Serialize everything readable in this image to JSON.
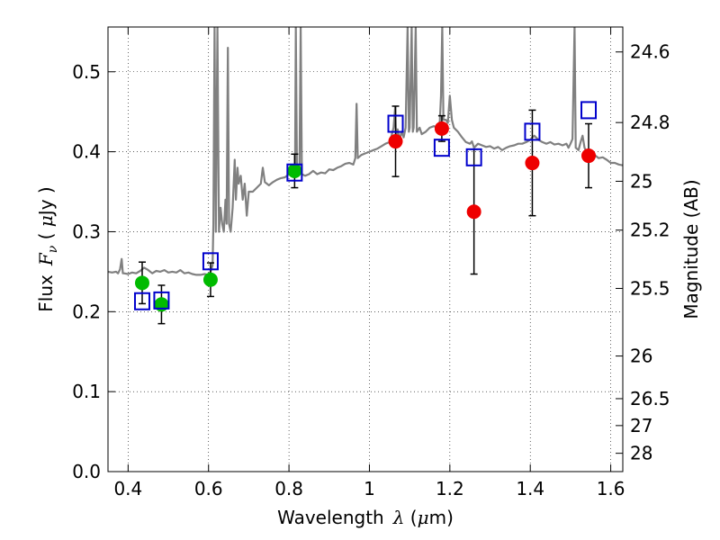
{
  "chart_data": {
    "type": "scatter",
    "xlabel": "Wavelength",
    "xlabel_symbol": "λ",
    "xlabel_unit_open": " (",
    "xlabel_unit_mu": "μ",
    "xlabel_unit_rest": "m)",
    "ylabel": "Flux",
    "ylabel_symbol": "F",
    "ylabel_subscript": "ν",
    "ylabel_unit_open": " ( ",
    "ylabel_unit_mu": "μ",
    "ylabel_unit_rest": "Jy )",
    "y2label": "Magnitude (AB)",
    "xlim": [
      0.35,
      1.63
    ],
    "ylim": [
      0.0,
      0.556
    ],
    "grid": true,
    "x_ticks": [
      {
        "value": 0.4,
        "label": "0.4"
      },
      {
        "value": 0.6,
        "label": "0.6"
      },
      {
        "value": 0.8,
        "label": "0.8"
      },
      {
        "value": 1.0,
        "label": "1"
      },
      {
        "value": 1.2,
        "label": "1.2"
      },
      {
        "value": 1.4,
        "label": "1.4"
      },
      {
        "value": 1.6,
        "label": "1.6"
      }
    ],
    "y_ticks": [
      {
        "value": 0.0,
        "label": "0.0"
      },
      {
        "value": 0.1,
        "label": "0.1"
      },
      {
        "value": 0.2,
        "label": "0.2"
      },
      {
        "value": 0.3,
        "label": "0.3"
      },
      {
        "value": 0.4,
        "label": "0.4"
      },
      {
        "value": 0.5,
        "label": "0.5"
      }
    ],
    "y2_ticks": [
      {
        "value": 24.6,
        "label": "24.6"
      },
      {
        "value": 24.8,
        "label": "24.8"
      },
      {
        "value": 25.0,
        "label": "25"
      },
      {
        "value": 25.2,
        "label": "25.2"
      },
      {
        "value": 25.5,
        "label": "25.5"
      },
      {
        "value": 26.0,
        "label": "26"
      },
      {
        "value": 26.5,
        "label": "26.5"
      },
      {
        "value": 27.0,
        "label": "27"
      },
      {
        "value": 28.0,
        "label": "28"
      }
    ],
    "colors": {
      "model": "#808080",
      "green": "#00bb00",
      "red": "#ee0000",
      "blue": "#0000cc",
      "errorbar": "#000000",
      "grid": "#000000"
    },
    "series": [
      {
        "name": "green-measured",
        "marker": "circle",
        "color": "#00bb00",
        "points": [
          {
            "x": 0.435,
            "y": 0.236,
            "err": 0.026
          },
          {
            "x": 0.483,
            "y": 0.209,
            "err": 0.024
          },
          {
            "x": 0.605,
            "y": 0.24,
            "err": 0.021
          },
          {
            "x": 0.814,
            "y": 0.376,
            "err": 0.021
          }
        ]
      },
      {
        "name": "red-measured",
        "marker": "circle",
        "color": "#ee0000",
        "points": [
          {
            "x": 1.065,
            "y": 0.413,
            "err": 0.044
          },
          {
            "x": 1.18,
            "y": 0.429,
            "err": 0.016
          },
          {
            "x": 1.26,
            "y": 0.325,
            "err": 0.078
          },
          {
            "x": 1.405,
            "y": 0.386,
            "err": 0.066
          },
          {
            "x": 1.545,
            "y": 0.395,
            "err": 0.04
          }
        ]
      },
      {
        "name": "model-photometry",
        "marker": "square",
        "color": "#0000cc",
        "points": [
          {
            "x": 0.435,
            "y": 0.213
          },
          {
            "x": 0.483,
            "y": 0.214
          },
          {
            "x": 0.605,
            "y": 0.263
          },
          {
            "x": 0.814,
            "y": 0.374
          },
          {
            "x": 1.065,
            "y": 0.435
          },
          {
            "x": 1.18,
            "y": 0.405
          },
          {
            "x": 1.26,
            "y": 0.393
          },
          {
            "x": 1.405,
            "y": 0.425
          },
          {
            "x": 1.545,
            "y": 0.452
          }
        ]
      }
    ],
    "model_spectrum": [
      [
        0.35,
        0.25
      ],
      [
        0.36,
        0.249
      ],
      [
        0.37,
        0.25
      ],
      [
        0.375,
        0.248
      ],
      [
        0.38,
        0.253
      ],
      [
        0.384,
        0.266
      ],
      [
        0.387,
        0.248
      ],
      [
        0.39,
        0.248
      ],
      [
        0.4,
        0.247
      ],
      [
        0.41,
        0.249
      ],
      [
        0.42,
        0.248
      ],
      [
        0.43,
        0.251
      ],
      [
        0.44,
        0.255
      ],
      [
        0.45,
        0.252
      ],
      [
        0.46,
        0.248
      ],
      [
        0.47,
        0.251
      ],
      [
        0.48,
        0.25
      ],
      [
        0.49,
        0.252
      ],
      [
        0.5,
        0.249
      ],
      [
        0.51,
        0.25
      ],
      [
        0.52,
        0.249
      ],
      [
        0.53,
        0.252
      ],
      [
        0.54,
        0.248
      ],
      [
        0.55,
        0.249
      ],
      [
        0.56,
        0.247
      ],
      [
        0.57,
        0.246
      ],
      [
        0.58,
        0.246
      ],
      [
        0.59,
        0.247
      ],
      [
        0.6,
        0.246
      ],
      [
        0.605,
        0.25
      ],
      [
        0.61,
        0.258
      ],
      [
        0.612,
        0.31
      ],
      [
        0.615,
        0.556
      ],
      [
        0.618,
        0.3
      ],
      [
        0.622,
        0.556
      ],
      [
        0.626,
        0.3
      ],
      [
        0.63,
        0.33
      ],
      [
        0.634,
        0.31
      ],
      [
        0.638,
        0.3
      ],
      [
        0.642,
        0.34
      ],
      [
        0.645,
        0.31
      ],
      [
        0.648,
        0.53
      ],
      [
        0.651,
        0.31
      ],
      [
        0.655,
        0.3
      ],
      [
        0.66,
        0.33
      ],
      [
        0.665,
        0.39
      ],
      [
        0.668,
        0.34
      ],
      [
        0.672,
        0.38
      ],
      [
        0.675,
        0.36
      ],
      [
        0.68,
        0.37
      ],
      [
        0.685,
        0.34
      ],
      [
        0.69,
        0.36
      ],
      [
        0.695,
        0.32
      ],
      [
        0.7,
        0.35
      ],
      [
        0.71,
        0.35
      ],
      [
        0.72,
        0.355
      ],
      [
        0.73,
        0.36
      ],
      [
        0.735,
        0.38
      ],
      [
        0.74,
        0.362
      ],
      [
        0.75,
        0.358
      ],
      [
        0.76,
        0.362
      ],
      [
        0.77,
        0.365
      ],
      [
        0.78,
        0.367
      ],
      [
        0.79,
        0.368
      ],
      [
        0.8,
        0.372
      ],
      [
        0.81,
        0.376
      ],
      [
        0.815,
        0.372
      ],
      [
        0.817,
        0.556
      ],
      [
        0.82,
        0.372
      ],
      [
        0.822,
        0.374
      ],
      [
        0.826,
        0.372
      ],
      [
        0.829,
        0.556
      ],
      [
        0.832,
        0.372
      ],
      [
        0.84,
        0.37
      ],
      [
        0.85,
        0.372
      ],
      [
        0.86,
        0.376
      ],
      [
        0.87,
        0.372
      ],
      [
        0.88,
        0.374
      ],
      [
        0.89,
        0.373
      ],
      [
        0.9,
        0.378
      ],
      [
        0.91,
        0.377
      ],
      [
        0.92,
        0.38
      ],
      [
        0.93,
        0.382
      ],
      [
        0.94,
        0.385
      ],
      [
        0.95,
        0.386
      ],
      [
        0.96,
        0.384
      ],
      [
        0.965,
        0.392
      ],
      [
        0.968,
        0.46
      ],
      [
        0.971,
        0.392
      ],
      [
        0.98,
        0.396
      ],
      [
        0.99,
        0.398
      ],
      [
        1.0,
        0.4
      ],
      [
        1.01,
        0.402
      ],
      [
        1.02,
        0.404
      ],
      [
        1.03,
        0.407
      ],
      [
        1.04,
        0.41
      ],
      [
        1.05,
        0.412
      ],
      [
        1.055,
        0.42
      ],
      [
        1.06,
        0.43
      ],
      [
        1.064,
        0.456
      ],
      [
        1.066,
        0.42
      ],
      [
        1.07,
        0.428
      ],
      [
        1.075,
        0.415
      ],
      [
        1.08,
        0.425
      ],
      [
        1.085,
        0.418
      ],
      [
        1.09,
        0.43
      ],
      [
        1.095,
        0.556
      ],
      [
        1.098,
        0.425
      ],
      [
        1.1,
        0.43
      ],
      [
        1.105,
        0.556
      ],
      [
        1.108,
        0.425
      ],
      [
        1.11,
        0.43
      ],
      [
        1.115,
        0.556
      ],
      [
        1.118,
        0.425
      ],
      [
        1.125,
        0.43
      ],
      [
        1.13,
        0.422
      ],
      [
        1.14,
        0.425
      ],
      [
        1.15,
        0.43
      ],
      [
        1.16,
        0.432
      ],
      [
        1.17,
        0.43
      ],
      [
        1.175,
        0.438
      ],
      [
        1.178,
        0.47
      ],
      [
        1.181,
        0.556
      ],
      [
        1.184,
        0.44
      ],
      [
        1.19,
        0.44
      ],
      [
        1.195,
        0.436
      ],
      [
        1.2,
        0.47
      ],
      [
        1.205,
        0.44
      ],
      [
        1.21,
        0.43
      ],
      [
        1.22,
        0.425
      ],
      [
        1.23,
        0.418
      ],
      [
        1.24,
        0.412
      ],
      [
        1.25,
        0.41
      ],
      [
        1.255,
        0.413
      ],
      [
        1.26,
        0.405
      ],
      [
        1.27,
        0.41
      ],
      [
        1.28,
        0.408
      ],
      [
        1.29,
        0.406
      ],
      [
        1.3,
        0.407
      ],
      [
        1.31,
        0.404
      ],
      [
        1.32,
        0.406
      ],
      [
        1.33,
        0.402
      ],
      [
        1.34,
        0.405
      ],
      [
        1.35,
        0.407
      ],
      [
        1.36,
        0.408
      ],
      [
        1.37,
        0.41
      ],
      [
        1.38,
        0.41
      ],
      [
        1.39,
        0.412
      ],
      [
        1.4,
        0.415
      ],
      [
        1.405,
        0.418
      ],
      [
        1.41,
        0.42
      ],
      [
        1.42,
        0.415
      ],
      [
        1.43,
        0.412
      ],
      [
        1.44,
        0.41
      ],
      [
        1.45,
        0.412
      ],
      [
        1.46,
        0.409
      ],
      [
        1.47,
        0.41
      ],
      [
        1.48,
        0.408
      ],
      [
        1.49,
        0.41
      ],
      [
        1.495,
        0.405
      ],
      [
        1.5,
        0.41
      ],
      [
        1.505,
        0.416
      ],
      [
        1.51,
        0.556
      ],
      [
        1.513,
        0.405
      ],
      [
        1.52,
        0.402
      ],
      [
        1.525,
        0.412
      ],
      [
        1.53,
        0.42
      ],
      [
        1.535,
        0.405
      ],
      [
        1.54,
        0.4
      ],
      [
        1.55,
        0.398
      ],
      [
        1.56,
        0.396
      ],
      [
        1.57,
        0.392
      ],
      [
        1.58,
        0.393
      ],
      [
        1.59,
        0.39
      ],
      [
        1.6,
        0.386
      ],
      [
        1.61,
        0.386
      ],
      [
        1.62,
        0.384
      ],
      [
        1.63,
        0.383
      ]
    ]
  }
}
